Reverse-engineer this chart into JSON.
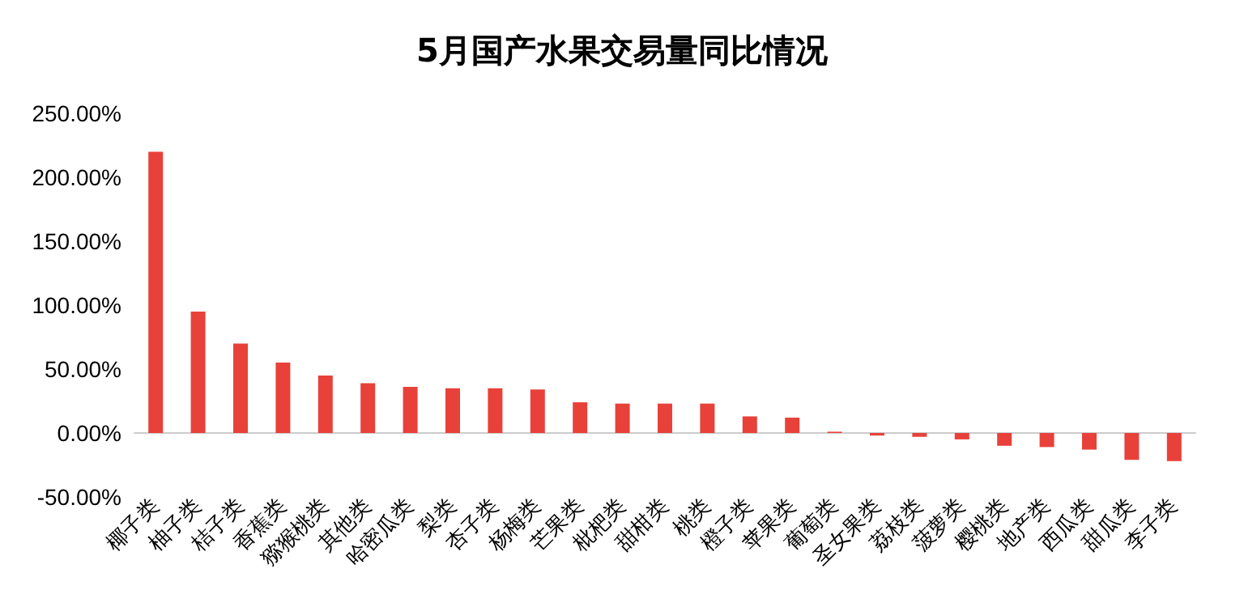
{
  "chart_data": {
    "type": "bar",
    "title": "5月国产水果交易量同比情况",
    "categories": [
      "椰子类",
      "柚子类",
      "桔子类",
      "香蕉类",
      "猕猴桃类",
      "其他类",
      "哈密瓜类",
      "梨类",
      "杏子类",
      "杨梅类",
      "芒果类",
      "枇杷类",
      "甜柑类",
      "桃类",
      "橙子类",
      "苹果类",
      "葡萄类",
      "圣女果类",
      "荔枝类",
      "菠萝类",
      "樱桃类",
      "地产类",
      "西瓜类",
      "甜瓜类",
      "李子类"
    ],
    "values": [
      220,
      95,
      70,
      55,
      45,
      39,
      36,
      35,
      35,
      34,
      24,
      23,
      23,
      23,
      13,
      12,
      1,
      -2,
      -3,
      -5,
      -10,
      -11,
      -13,
      -21,
      -22
    ],
    "color": "#e8413a",
    "ylim": [
      -50,
      250
    ],
    "yticks": [
      {
        "value": -50,
        "label": "-50.00%"
      },
      {
        "value": 0,
        "label": "0.00%"
      },
      {
        "value": 50,
        "label": "50.00%"
      },
      {
        "value": 100,
        "label": "100.00%"
      },
      {
        "value": 150,
        "label": "150.00%"
      },
      {
        "value": 200,
        "label": "200.00%"
      },
      {
        "value": 250,
        "label": "250.00%"
      }
    ]
  }
}
